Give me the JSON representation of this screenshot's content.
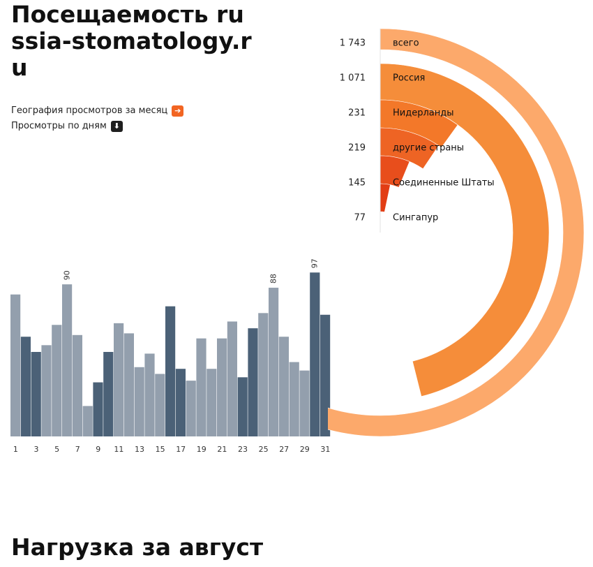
{
  "header": {
    "title": "Посещаемость russia-stomatology.ru"
  },
  "links": {
    "geo_label": "География просмотров за месяц",
    "geo_icon": "arrow-right-icon",
    "days_label": "Просмотры по дням",
    "days_icon": "arrow-down-icon"
  },
  "section": {
    "title": "Нагрузка за август"
  },
  "chart_data": [
    {
      "type": "bar",
      "x": [
        1,
        2,
        3,
        4,
        5,
        6,
        7,
        8,
        9,
        10,
        11,
        12,
        13,
        14,
        15,
        16,
        17,
        18,
        19,
        20,
        21,
        22,
        23,
        24,
        25,
        26,
        27,
        28,
        29,
        30,
        31
      ],
      "tick_labels": [
        "1",
        "3",
        "5",
        "7",
        "9",
        "11",
        "13",
        "15",
        "17",
        "19",
        "21",
        "23",
        "25",
        "27",
        "29",
        "31"
      ],
      "values": [
        84,
        59,
        50,
        54,
        66,
        90,
        60,
        18,
        32,
        50,
        67,
        61,
        41,
        49,
        37,
        77,
        40,
        33,
        58,
        40,
        58,
        68,
        35,
        64,
        73,
        88,
        59,
        44,
        39,
        97,
        72
      ],
      "weekend_days": [
        2,
        3,
        9,
        10,
        16,
        17,
        23,
        24,
        30,
        31
      ],
      "data_labels": [
        {
          "x": 6,
          "label": "90"
        },
        {
          "x": 26,
          "label": "88"
        },
        {
          "x": 30,
          "label": "97"
        }
      ],
      "ylim": [
        0,
        100
      ],
      "colors": {
        "weekday": "#939fad",
        "weekend": "#4b6177"
      },
      "grid": false
    },
    {
      "type": "pie",
      "variant": "nested-radial",
      "slices": [
        {
          "label": "всего",
          "value": 1743,
          "value_label": "1 743",
          "color": "#fca96b"
        },
        {
          "label": "Россия",
          "value": 1071,
          "value_label": "1 071",
          "color": "#f58d3a"
        },
        {
          "label": "Нидерланды",
          "value": 231,
          "value_label": "231",
          "color": "#f37829"
        },
        {
          "label": "другие страны",
          "value": 219,
          "value_label": "219",
          "color": "#ee6424"
        },
        {
          "label": "Соединенные Штаты",
          "value": 145,
          "value_label": "145",
          "color": "#e84e1c"
        },
        {
          "label": "Сингапур",
          "value": 77,
          "value_label": "77",
          "color": "#e23d14"
        }
      ]
    }
  ]
}
